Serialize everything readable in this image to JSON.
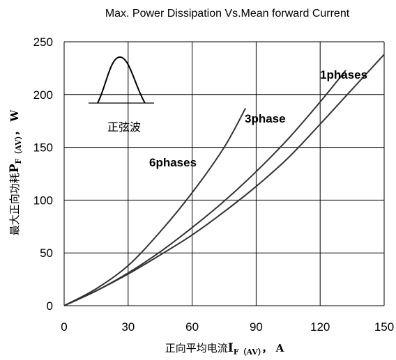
{
  "chart_data": {
    "type": "line",
    "title": "Max. Power Dissipation Vs.Mean forward Current",
    "xlabel": {
      "main": "正向平均电流",
      "symbol": "I",
      "sub": "F（AV）",
      "unit": "， A"
    },
    "ylabel": {
      "main": "最大正向功耗",
      "symbol": "P",
      "sub": "F（AV）",
      "unit": "， W"
    },
    "xlim": [
      0,
      150
    ],
    "ylim": [
      0,
      250
    ],
    "x_ticks": [
      "0",
      "30",
      "60",
      "90",
      "120",
      "150"
    ],
    "y_ticks": [
      "0",
      "50",
      "100",
      "150",
      "200",
      "250"
    ],
    "grid": true,
    "series": [
      {
        "name": "1phases",
        "x": [
          0,
          15,
          30,
          45,
          60,
          75,
          90,
          105,
          120,
          135,
          150
        ],
        "values": [
          0,
          14,
          30,
          48,
          67,
          89,
          113,
          140,
          172,
          205,
          238
        ]
      },
      {
        "name": "3phase",
        "x": [
          0,
          15,
          30,
          45,
          60,
          75,
          90,
          105,
          120,
          132
        ],
        "values": [
          0,
          14,
          31,
          51,
          74,
          99,
          127,
          158,
          193,
          223
        ]
      },
      {
        "name": "6phases",
        "x": [
          0,
          15,
          30,
          45,
          60,
          75,
          85
        ],
        "values": [
          0,
          16,
          38,
          70,
          107,
          150,
          187
        ]
      }
    ],
    "inset": {
      "label": "正弦波",
      "shape": "half-sine-wave-icon"
    }
  }
}
